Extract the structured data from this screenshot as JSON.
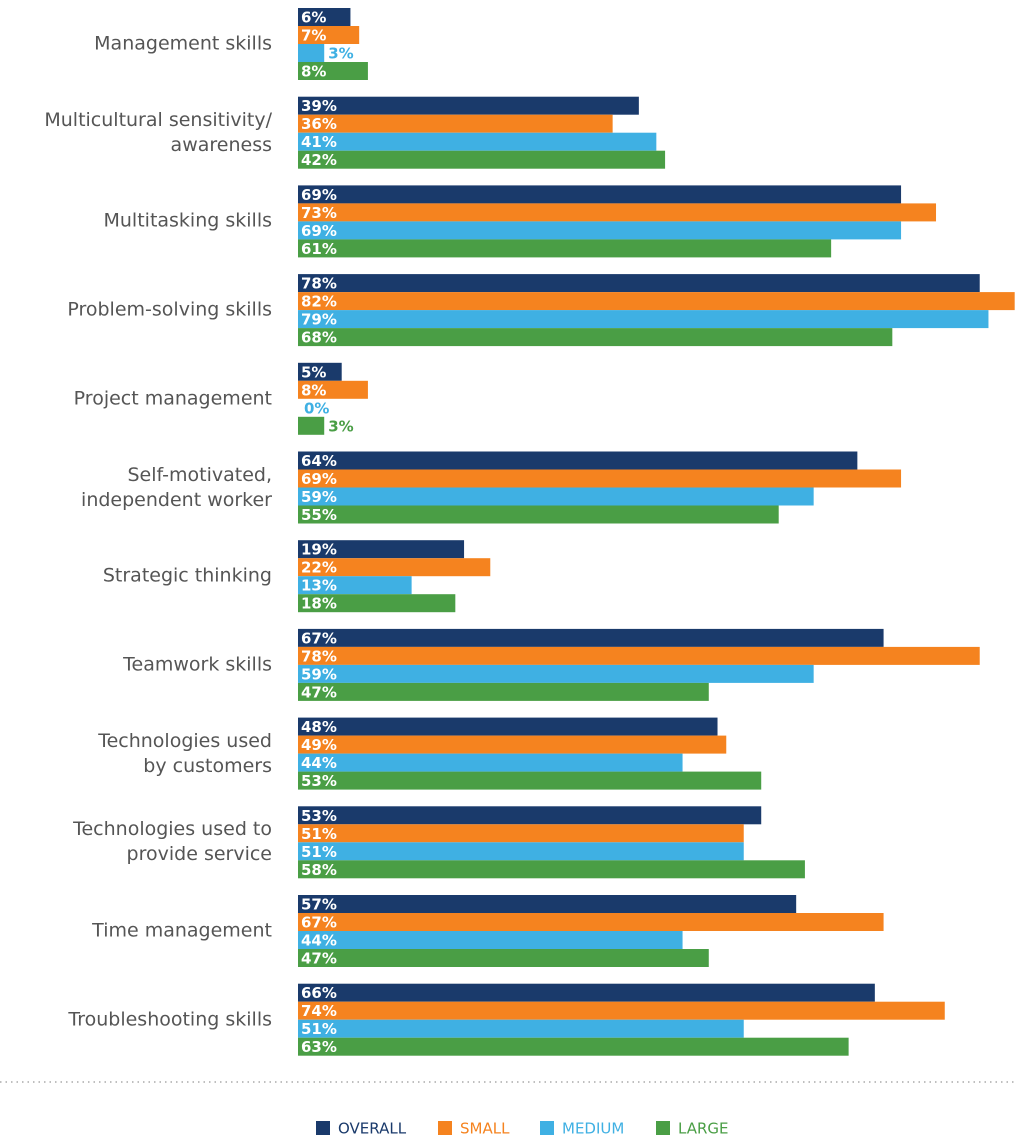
{
  "chart_data": {
    "type": "bar",
    "orientation": "horizontal",
    "categories": [
      "Management skills",
      "Multicultural sensitivity/\nawareness",
      "Multitasking skills",
      "Problem-solving skills",
      "Project management",
      "Self-motivated,\nindependent worker",
      "Strategic thinking",
      "Teamwork skills",
      "Technologies used\nby customers",
      "Technologies used to\nprovide service",
      "Time management",
      "Troubleshooting skills"
    ],
    "series": [
      {
        "name": "OVERALL",
        "color": "#1a3a6b",
        "values": [
          6,
          39,
          69,
          78,
          5,
          64,
          19,
          67,
          48,
          53,
          57,
          66
        ],
        "value_labels": [
          "6%",
          "39%",
          "69%",
          "78%",
          "5%",
          "64%",
          "19%",
          "67%",
          "48%",
          "53%",
          "57%",
          "66%"
        ]
      },
      {
        "name": "SMALL",
        "color": "#f5831f",
        "values": [
          7,
          36,
          73,
          82,
          8,
          69,
          22,
          78,
          49,
          51,
          67,
          74
        ],
        "value_labels": [
          "7%",
          "36%",
          "73%",
          "82%",
          "8%",
          "69%",
          "22%",
          "78%",
          "49%",
          "51%",
          "67%",
          "74%"
        ]
      },
      {
        "name": "MEDIUM",
        "color": "#3fb0e3",
        "values": [
          3,
          41,
          69,
          79,
          0,
          59,
          13,
          59,
          44,
          51,
          44,
          51
        ],
        "value_labels": [
          "3%",
          "41%",
          "69%",
          "79%",
          "0%",
          "59%",
          "13%",
          "59%",
          "44%",
          "51%",
          "44%",
          "51%"
        ]
      },
      {
        "name": "LARGE",
        "color": "#4a9e45",
        "values": [
          8,
          42,
          61,
          68,
          3,
          55,
          18,
          47,
          53,
          58,
          47,
          63
        ],
        "value_labels": [
          "8%",
          "42%",
          "61%",
          "68%",
          "3%",
          "55%",
          "18%",
          "47%",
          "53%",
          "58%",
          "47%",
          "63%"
        ]
      }
    ]
  }
}
